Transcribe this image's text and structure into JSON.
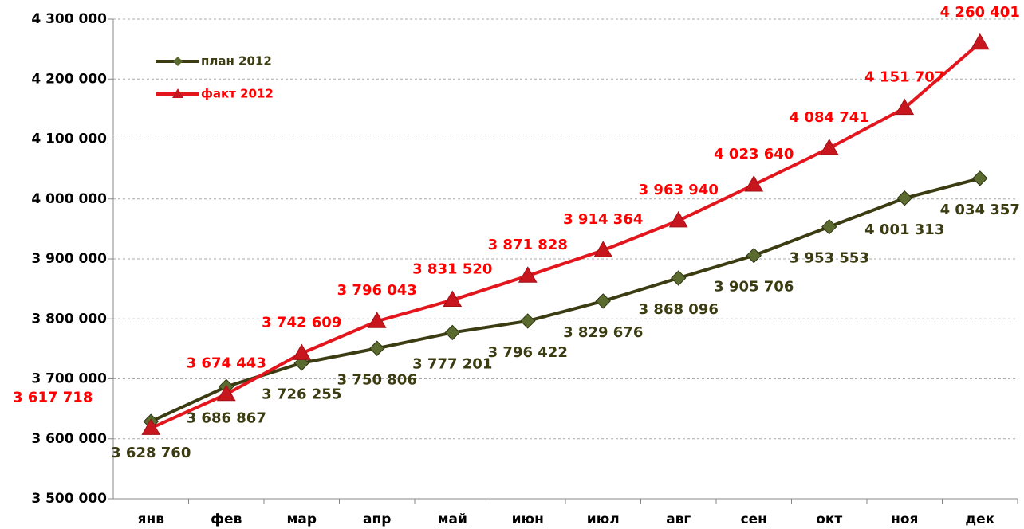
{
  "chart_data": {
    "type": "line",
    "categories": [
      "янв",
      "фев",
      "мар",
      "апр",
      "май",
      "июн",
      "июл",
      "авг",
      "сен",
      "окт",
      "ноя",
      "дек"
    ],
    "series": [
      {
        "name": "план 2012",
        "color": "#3b3c12",
        "marker_color": "#5b6b2f",
        "values": [
          3628760,
          3686867,
          3726255,
          3750806,
          3777201,
          3796422,
          3829676,
          3868096,
          3905706,
          3953553,
          4001313,
          4034357
        ],
        "value_labels": [
          "3 628 760",
          "3 686 867",
          "3 726 255",
          "3 750 806",
          "3 777 201",
          "3 796 422",
          "3 829 676",
          "3 868 096",
          "3 905 706",
          "3 953 553",
          "4 001 313",
          "4 034 357"
        ]
      },
      {
        "name": "факт 2012",
        "color": "#e3161e",
        "marker_color": "#c8161e",
        "values": [
          3617718,
          3674443,
          3742609,
          3796043,
          3831520,
          3871828,
          3914364,
          3963940,
          4023640,
          4084741,
          4151707,
          4260401
        ],
        "value_labels": [
          "3 617 718",
          "3 674 443",
          "3 742 609",
          "3 796 043",
          "3 831 520",
          "3 871 828",
          "3 914 364",
          "3 963 940",
          "4 023 640",
          "4 084 741",
          "4 151 707",
          "4 260 401"
        ]
      }
    ],
    "ylim": [
      3500000,
      4300000
    ],
    "yticks": [
      {
        "value": 3500000,
        "label": "3 500 000"
      },
      {
        "value": 3600000,
        "label": "3 600 000"
      },
      {
        "value": 3700000,
        "label": "3 700 000"
      },
      {
        "value": 3800000,
        "label": "3 800 000"
      },
      {
        "value": 3900000,
        "label": "3 900 000"
      },
      {
        "value": 4000000,
        "label": "4 000 000"
      },
      {
        "value": 4100000,
        "label": "4 100 000"
      },
      {
        "value": 4200000,
        "label": "4 200 000"
      },
      {
        "value": 4300000,
        "label": "4 300 000"
      }
    ],
    "grid": true,
    "legend": "upper left"
  }
}
